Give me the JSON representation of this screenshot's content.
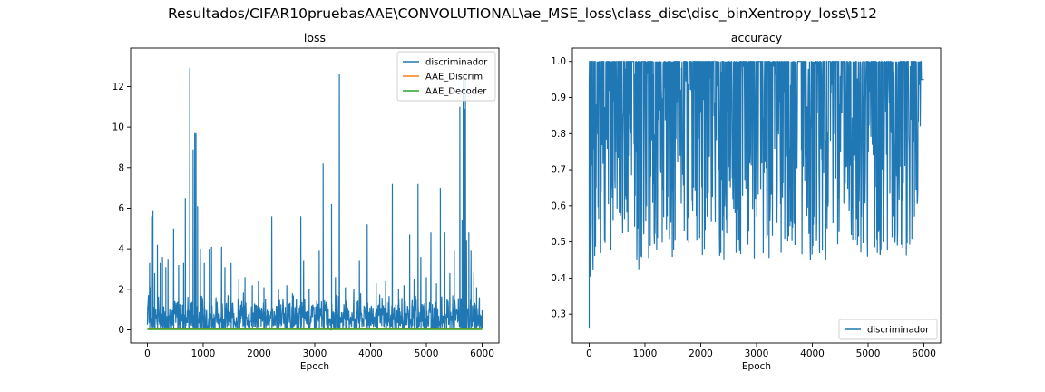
{
  "figure": {
    "suptitle": "Resultados/CIFAR10pruebasAAE\\CONVOLUTIONAL\\ae_MSE_loss\\class_disc\\disc_binXentropy_loss\\512"
  },
  "chart_data": [
    {
      "type": "line",
      "title": "loss",
      "xlabel": "Epoch",
      "ylabel": "",
      "xlim": [
        -300,
        6300
      ],
      "ylim": [
        -0.65,
        13.9
      ],
      "xticks": [
        0,
        1000,
        2000,
        3000,
        4000,
        5000,
        6000
      ],
      "yticks": [
        0,
        2,
        4,
        6,
        8,
        10,
        12
      ],
      "legend": "top-right",
      "grid": false,
      "series": [
        {
          "name": "discriminador",
          "color": "#1f77b4",
          "baseline": 0.7,
          "spikes": [
            [
              40,
              3.3
            ],
            [
              70,
              5.6
            ],
            [
              100,
              5.9
            ],
            [
              130,
              2.8
            ],
            [
              180,
              4.2
            ],
            [
              230,
              3.3
            ],
            [
              270,
              3.6
            ],
            [
              330,
              3.1
            ],
            [
              370,
              3.5
            ],
            [
              470,
              5.0
            ],
            [
              560,
              3.2
            ],
            [
              650,
              3.3
            ],
            [
              680,
              6.5
            ],
            [
              760,
              12.9
            ],
            [
              820,
              8.9
            ],
            [
              850,
              9.7
            ],
            [
              870,
              9.7
            ],
            [
              900,
              6.1
            ],
            [
              950,
              4.0
            ],
            [
              1020,
              3.3
            ],
            [
              1110,
              4.0
            ],
            [
              1150,
              4.1
            ],
            [
              1330,
              4.1
            ],
            [
              1390,
              3.1
            ],
            [
              1500,
              3.3
            ],
            [
              1640,
              2.5
            ],
            [
              1750,
              2.6
            ],
            [
              1880,
              2.2
            ],
            [
              1990,
              2.4
            ],
            [
              2090,
              2.1
            ],
            [
              2230,
              5.6
            ],
            [
              2350,
              2.0
            ],
            [
              2500,
              2.2
            ],
            [
              2600,
              1.8
            ],
            [
              2750,
              5.6
            ],
            [
              2800,
              3.4
            ],
            [
              2900,
              2.0
            ],
            [
              3080,
              3.9
            ],
            [
              3150,
              8.2
            ],
            [
              3300,
              6.2
            ],
            [
              3370,
              2.6
            ],
            [
              3440,
              12.6
            ],
            [
              3550,
              2.1
            ],
            [
              3700,
              2.0
            ],
            [
              3800,
              3.4
            ],
            [
              3940,
              5.2
            ],
            [
              4100,
              2.3
            ],
            [
              4270,
              2.4
            ],
            [
              4390,
              7.2
            ],
            [
              4500,
              2.0
            ],
            [
              4600,
              2.2
            ],
            [
              4700,
              4.7
            ],
            [
              4780,
              2.5
            ],
            [
              4850,
              7.2
            ],
            [
              4900,
              3.6
            ],
            [
              5000,
              2.6
            ],
            [
              5080,
              4.8
            ],
            [
              5180,
              2.3
            ],
            [
              5250,
              7.0
            ],
            [
              5330,
              4.8
            ],
            [
              5420,
              2.8
            ],
            [
              5500,
              3.9
            ],
            [
              5600,
              11.0
            ],
            [
              5640,
              5.4
            ],
            [
              5660,
              12.6
            ],
            [
              5680,
              10.9
            ],
            [
              5700,
              12.4
            ],
            [
              5720,
              4.4
            ],
            [
              5760,
              4.8
            ],
            [
              5800,
              3.9
            ],
            [
              5850,
              2.8
            ],
            [
              5900,
              2.1
            ],
            [
              5950,
              1.6
            ],
            [
              6000,
              0.4
            ]
          ]
        },
        {
          "name": "AAE_Discrim",
          "color": "#ff7f0e",
          "value": 0.06
        },
        {
          "name": "AAE_Decoder",
          "color": "#2ca02c",
          "value": 0.02
        }
      ]
    },
    {
      "type": "line",
      "title": "accuracy",
      "xlabel": "Epoch",
      "ylabel": "",
      "xlim": [
        -300,
        6300
      ],
      "ylim": [
        0.22,
        1.037
      ],
      "xticks": [
        0,
        1000,
        2000,
        3000,
        4000,
        5000,
        6000
      ],
      "yticks": [
        0.3,
        0.4,
        0.5,
        0.6,
        0.7,
        0.8,
        0.9,
        1.0
      ],
      "legend": "bottom-right",
      "grid": false,
      "series": [
        {
          "name": "discriminador",
          "color": "#1f77b4",
          "top": 1.0,
          "dips": [
            [
              0,
              0.26
            ],
            [
              40,
              0.4
            ],
            [
              100,
              0.44
            ],
            [
              200,
              0.45
            ],
            [
              300,
              0.47
            ],
            [
              400,
              0.47
            ],
            [
              500,
              0.48
            ],
            [
              600,
              0.46
            ],
            [
              700,
              0.47
            ],
            [
              780,
              0.42
            ],
            [
              900,
              0.45
            ],
            [
              1000,
              0.45
            ],
            [
              1100,
              0.45
            ],
            [
              1200,
              0.45
            ],
            [
              1300,
              0.45
            ],
            [
              1400,
              0.45
            ],
            [
              1500,
              0.45
            ],
            [
              1600,
              0.45
            ],
            [
              1700,
              0.41
            ],
            [
              1800,
              0.45
            ],
            [
              1900,
              0.45
            ],
            [
              2000,
              0.45
            ],
            [
              2100,
              0.45
            ],
            [
              2200,
              0.45
            ],
            [
              2300,
              0.45
            ],
            [
              2400,
              0.45
            ],
            [
              2500,
              0.45
            ],
            [
              2600,
              0.45
            ],
            [
              2700,
              0.45
            ],
            [
              2800,
              0.45
            ],
            [
              2900,
              0.45
            ],
            [
              3000,
              0.45
            ],
            [
              3100,
              0.45
            ],
            [
              3200,
              0.45
            ],
            [
              3300,
              0.45
            ],
            [
              3400,
              0.45
            ],
            [
              3500,
              0.45
            ],
            [
              3600,
              0.45
            ],
            [
              3700,
              0.45
            ],
            [
              3800,
              0.45
            ],
            [
              3900,
              0.45
            ],
            [
              4000,
              0.45
            ],
            [
              4100,
              0.45
            ],
            [
              4200,
              0.45
            ],
            [
              4300,
              0.45
            ],
            [
              4400,
              0.45
            ],
            [
              4500,
              0.45
            ],
            [
              4600,
              0.45
            ],
            [
              4700,
              0.45
            ],
            [
              4800,
              0.45
            ],
            [
              4900,
              0.45
            ],
            [
              5000,
              0.45
            ],
            [
              5100,
              0.45
            ],
            [
              5200,
              0.45
            ],
            [
              5300,
              0.45
            ],
            [
              5400,
              0.45
            ],
            [
              5500,
              0.46
            ],
            [
              5600,
              0.45
            ],
            [
              5700,
              0.46
            ],
            [
              5800,
              0.48
            ],
            [
              5850,
              0.49
            ],
            [
              5900,
              0.76
            ],
            [
              5950,
              0.9
            ],
            [
              6000,
              0.95
            ]
          ]
        }
      ]
    }
  ]
}
